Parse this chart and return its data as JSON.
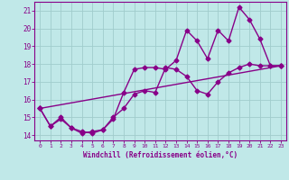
{
  "xlabel": "Windchill (Refroidissement éolien,°C)",
  "bg_color": "#c0e8e8",
  "grid_color": "#a0cccc",
  "line_color": "#880088",
  "xlim": [
    -0.5,
    23.5
  ],
  "ylim": [
    13.7,
    21.5
  ],
  "yticks": [
    14,
    15,
    16,
    17,
    18,
    19,
    20,
    21
  ],
  "xticks": [
    0,
    1,
    2,
    3,
    4,
    5,
    6,
    7,
    8,
    9,
    10,
    11,
    12,
    13,
    14,
    15,
    16,
    17,
    18,
    19,
    20,
    21,
    22,
    23
  ],
  "series1_x": [
    0,
    1,
    2,
    3,
    4,
    5,
    6,
    7,
    8,
    9,
    10,
    11,
    12,
    13,
    14,
    15,
    16,
    17,
    18,
    19,
    20,
    21,
    22,
    23
  ],
  "series1_y": [
    15.5,
    14.5,
    15.0,
    14.4,
    14.2,
    14.1,
    14.3,
    15.0,
    15.5,
    16.3,
    16.5,
    16.4,
    17.8,
    17.7,
    17.3,
    16.5,
    16.3,
    17.0,
    17.5,
    17.8,
    18.0,
    17.9,
    17.9,
    17.9
  ],
  "series2_x": [
    0,
    1,
    2,
    3,
    4,
    5,
    6,
    7,
    8,
    9,
    10,
    11,
    12,
    13,
    14,
    15,
    16,
    17,
    18,
    19,
    20,
    21,
    22,
    23
  ],
  "series2_y": [
    15.5,
    14.5,
    14.9,
    14.4,
    14.1,
    14.2,
    14.3,
    14.9,
    16.4,
    17.7,
    17.8,
    17.8,
    17.7,
    18.2,
    19.9,
    19.3,
    18.3,
    19.9,
    19.3,
    21.2,
    20.5,
    19.4,
    17.9,
    17.9
  ],
  "series3_x": [
    0,
    23
  ],
  "series3_y": [
    15.5,
    17.9
  ],
  "marker": "D",
  "markersize": 2.5,
  "linewidth": 1.0
}
